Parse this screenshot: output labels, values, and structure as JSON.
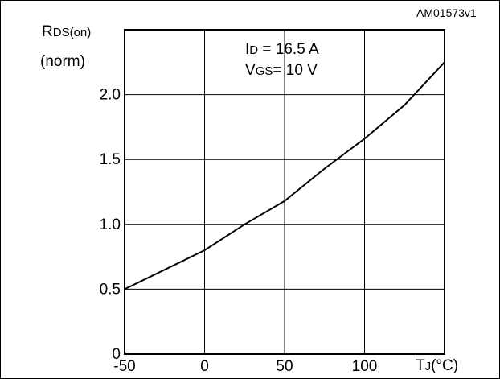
{
  "figure_id": "AM01573v1",
  "ylabel": {
    "main": "R",
    "subscript": "DS(on)",
    "second_line": "(norm)"
  },
  "xlabel": {
    "main": "T",
    "subscript": "J",
    "unit": "(°C)"
  },
  "conditions": [
    {
      "main": "I",
      "subscript": "D",
      "rest": " = 16.5 A"
    },
    {
      "main": "V",
      "subscript": "GS",
      "rest": "= 10 V"
    }
  ],
  "chart_data": {
    "type": "line",
    "x_ticks": [
      -50,
      0,
      50,
      100
    ],
    "y_ticks": [
      0,
      0.5,
      1.0,
      1.5,
      2.0
    ],
    "x_tick_labels": [
      "-50",
      "0",
      "50",
      "100"
    ],
    "y_tick_labels": [
      "0",
      "0.5",
      "1.0",
      "1.5",
      "2.0"
    ],
    "xlim": [
      -50,
      150
    ],
    "ylim": [
      0,
      2.5
    ],
    "grid": true,
    "series": [
      {
        "x": [
          -50,
          -25,
          0,
          25,
          50,
          75,
          100,
          125,
          150
        ],
        "y": [
          0.5,
          0.65,
          0.8,
          1.0,
          1.18,
          1.43,
          1.66,
          1.92,
          2.25
        ]
      }
    ]
  }
}
